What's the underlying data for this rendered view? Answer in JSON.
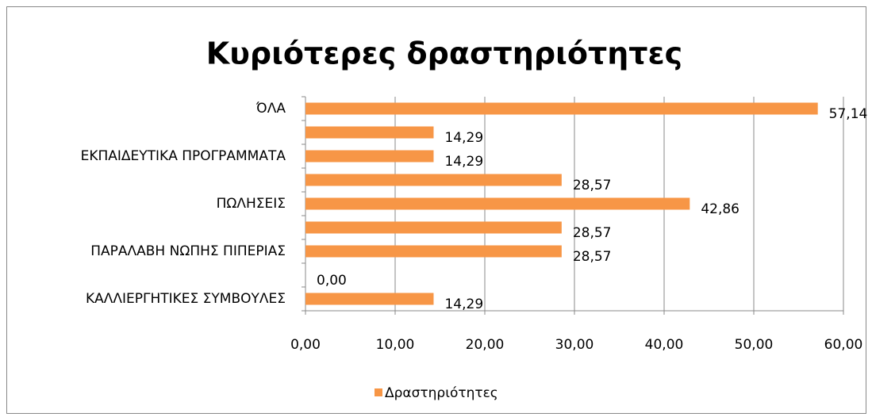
{
  "chart_data": {
    "type": "bar",
    "orientation": "horizontal",
    "title": "Κυριότερες δραστηριότητες",
    "categories": [
      "ΌΛΑ",
      null,
      "ΕΚΠΑΙΔΕΥΤΙΚΑ ΠΡΟΓΡΑΜΜΑΤΑ",
      null,
      "ΠΩΛΗΣΕΙΣ",
      null,
      "ΠΑΡΑΛΑΒΗ ΝΩΠΗΣ ΠΙΠΕΡΙΑΣ",
      null,
      "ΚΑΛΛΙΕΡΓΗΤΙΚΕΣ ΣΥΜΒΟΥΛΕΣ"
    ],
    "series": [
      {
        "name": "Δραστηριότητες",
        "color": "#f79646",
        "values": [
          57.14,
          14.29,
          14.29,
          28.57,
          42.86,
          28.57,
          28.57,
          0.0,
          14.29
        ],
        "value_labels": [
          "57,14",
          "14,29",
          "14,29",
          "28,57",
          "42,86",
          "28,57",
          "28,57",
          "0,00",
          "14,29"
        ]
      }
    ],
    "xlim": [
      0,
      60
    ],
    "xticks": [
      {
        "value": 0,
        "label": "0,00"
      },
      {
        "value": 10,
        "label": "10,00"
      },
      {
        "value": 20,
        "label": "20,00"
      },
      {
        "value": 30,
        "label": "30,00"
      },
      {
        "value": 40,
        "label": "40,00"
      },
      {
        "value": 50,
        "label": "50,00"
      },
      {
        "value": 60,
        "label": "60,00"
      }
    ],
    "grid": true,
    "legend": "bottom"
  }
}
